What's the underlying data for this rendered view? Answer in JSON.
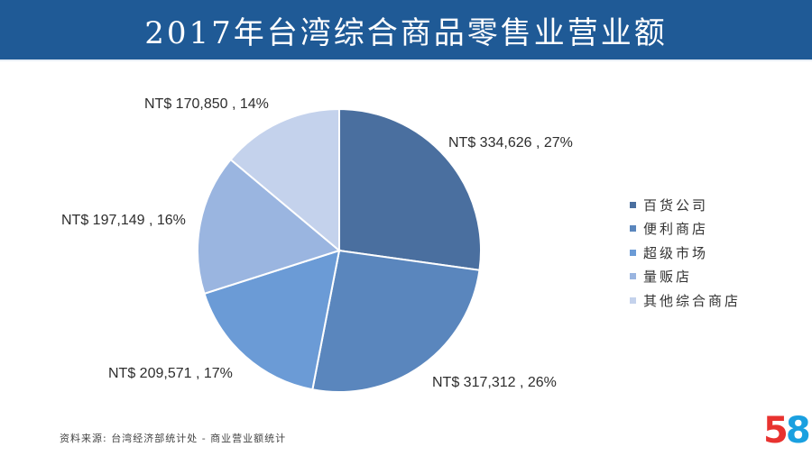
{
  "header": {
    "title": "2017年台湾综合商品零售业营业额"
  },
  "chart_data": {
    "type": "pie",
    "title": "2017年台湾综合商品零售业营业额",
    "slices": [
      {
        "name": "百货公司",
        "value": 334626,
        "percent": 27,
        "label": "NT$ 334,626 , 27%",
        "color": "#4a6f9f"
      },
      {
        "name": "便利商店",
        "value": 317312,
        "percent": 26,
        "label": "NT$ 317,312 , 26%",
        "color": "#5a86bd"
      },
      {
        "name": "超级市场",
        "value": 209571,
        "percent": 17,
        "label": "NT$ 209,571 , 17%",
        "color": "#6b9bd6"
      },
      {
        "name": "量贩店",
        "value": 197149,
        "percent": 16,
        "label": "NT$ 197,149 , 16%",
        "color": "#9ab5e0"
      },
      {
        "name": "其他综合商店",
        "value": 170850,
        "percent": 14,
        "label": "NT$ 170,850 , 14%",
        "color": "#c4d2ec"
      }
    ],
    "start_angle_deg": 0,
    "direction": "clockwise",
    "legend_position": "right"
  },
  "footer": {
    "source": "资料来源: 台湾经济部统计处 - 商业营业额统计",
    "logo_digit_1": "5",
    "logo_digit_2": "8"
  }
}
